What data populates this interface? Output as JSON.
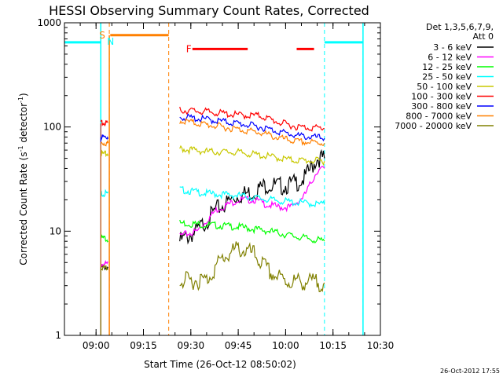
{
  "chart_data": {
    "type": "line",
    "title": "HESSI Observing Summary Count Rates, Corrected",
    "xlabel": "Start Time (26-Oct-12 08:50:02)",
    "ylabel_main": "Corrected Count Rate (s",
    "ylabel_sup1": "-1",
    "ylabel_mid": " detector",
    "ylabel_sup2": "-1",
    "ylabel_end": ")",
    "x_unit": "minutes since 08:50",
    "xlim": [
      0,
      100
    ],
    "ylim": [
      1,
      1000
    ],
    "y_scale": "log",
    "x_ticks": [
      {
        "value": 10,
        "label": "09:00"
      },
      {
        "value": 25,
        "label": "09:15"
      },
      {
        "value": 40,
        "label": "09:30"
      },
      {
        "value": 55,
        "label": "09:45"
      },
      {
        "value": 70,
        "label": "10:00"
      },
      {
        "value": 85,
        "label": "10:15"
      },
      {
        "value": 100,
        "label": "10:30"
      }
    ],
    "y_ticks": [
      {
        "value": 1,
        "label": "1"
      },
      {
        "value": 10,
        "label": "10"
      },
      {
        "value": 100,
        "label": "100"
      },
      {
        "value": 1000,
        "label": "1000"
      }
    ],
    "legend_header": [
      "Det 1,3,5,6,7,9,",
      "Att 0"
    ],
    "legend_position": "right",
    "segments": [
      [
        11.5,
        13.8
      ],
      [
        36.5,
        82.3
      ]
    ],
    "series": [
      {
        "name": "3 - 6 keV",
        "color": "#000000",
        "seg1": [
          4.5,
          4.5
        ],
        "seg2": [
          [
            36.5,
            8
          ],
          [
            42,
            10
          ],
          [
            48,
            16
          ],
          [
            55,
            22
          ],
          [
            60,
            24
          ],
          [
            64,
            28
          ],
          [
            68,
            27
          ],
          [
            72,
            28
          ],
          [
            76,
            32
          ],
          [
            80,
            50
          ],
          [
            82.3,
            50
          ]
        ]
      },
      {
        "name": "6 - 12 keV",
        "color": "#ff00ff",
        "seg1": [
          4.8,
          4.8
        ],
        "seg2": [
          [
            36.5,
            9
          ],
          [
            42,
            10
          ],
          [
            48,
            16
          ],
          [
            55,
            20
          ],
          [
            60,
            20
          ],
          [
            64,
            18
          ],
          [
            68,
            17
          ],
          [
            72,
            17
          ],
          [
            76,
            22
          ],
          [
            80,
            38
          ],
          [
            82.3,
            40
          ]
        ]
      },
      {
        "name": "12 - 25 keV",
        "color": "#00ff00",
        "seg1": [
          8.5,
          8.5
        ],
        "seg2": [
          [
            36.5,
            12
          ],
          [
            45,
            11.5
          ],
          [
            55,
            11
          ],
          [
            65,
            10
          ],
          [
            72,
            9
          ],
          [
            82.3,
            8
          ]
        ]
      },
      {
        "name": "25 - 50 keV",
        "color": "#00ffff",
        "seg1": [
          23,
          23
        ],
        "seg2": [
          [
            36.5,
            25
          ],
          [
            45,
            23
          ],
          [
            55,
            22
          ],
          [
            65,
            20
          ],
          [
            72,
            19
          ],
          [
            82.3,
            18
          ]
        ]
      },
      {
        "name": "50 - 100 keV",
        "color": "#c8c800",
        "seg1": [
          55,
          55
        ],
        "seg2": [
          [
            36.5,
            62
          ],
          [
            45,
            58
          ],
          [
            55,
            57
          ],
          [
            65,
            52
          ],
          [
            72,
            48
          ],
          [
            82.3,
            47
          ]
        ]
      },
      {
        "name": "100 - 300 keV",
        "color": "#ff0000",
        "seg1": [
          108,
          110
        ],
        "seg2": [
          [
            36.5,
            145
          ],
          [
            45,
            140
          ],
          [
            55,
            130
          ],
          [
            62,
            128
          ],
          [
            68,
            110
          ],
          [
            74,
            100
          ],
          [
            82.3,
            97
          ]
        ]
      },
      {
        "name": "300 - 800 keV",
        "color": "#0000ff",
        "seg1": [
          80,
          80
        ],
        "seg2": [
          [
            36.5,
            125
          ],
          [
            45,
            118
          ],
          [
            55,
            108
          ],
          [
            62,
            100
          ],
          [
            68,
            90
          ],
          [
            74,
            82
          ],
          [
            82.3,
            78
          ]
        ]
      },
      {
        "name": "800 - 7000 keV",
        "color": "#ff8000",
        "seg1": [
          70,
          70
        ],
        "seg2": [
          [
            36.5,
            115
          ],
          [
            45,
            105
          ],
          [
            55,
            95
          ],
          [
            62,
            88
          ],
          [
            68,
            78
          ],
          [
            74,
            72
          ],
          [
            82.3,
            70
          ]
        ]
      },
      {
        "name": "7000 - 20000 keV",
        "color": "#808000",
        "seg1": [
          4.5,
          4.5
        ],
        "seg2": [
          [
            36.5,
            3.3
          ],
          [
            45,
            3.4
          ],
          [
            50,
            5.5
          ],
          [
            55,
            6.8
          ],
          [
            60,
            6
          ],
          [
            65,
            4
          ],
          [
            70,
            3.3
          ],
          [
            82.3,
            3.2
          ]
        ]
      }
    ],
    "night_bars": [
      {
        "color": "#00ffff",
        "x0": 0,
        "x1": 11.5,
        "y": 650,
        "start_line": 11.5
      },
      {
        "color": "#00ffff",
        "x0": 82.3,
        "x1": 94.5,
        "y": 650,
        "start_line": 94.5
      }
    ],
    "saa": {
      "label": "S",
      "label2": "N",
      "x0": 14.5,
      "x1": 33,
      "y": 760,
      "color": "#ff8000"
    },
    "flare": {
      "label": "F",
      "color": "#ff0000",
      "y": 560,
      "segments": [
        [
          40.5,
          58
        ],
        [
          73.5,
          79
        ]
      ],
      "label_x": 38.5
    },
    "event_lines": [
      {
        "x": 11.5,
        "color": "#00ffff"
      },
      {
        "x": 14.2,
        "color": "#ff8000"
      },
      {
        "x": 33,
        "color": "#ff8000"
      },
      {
        "x": 82.3,
        "color": "#00ffff"
      },
      {
        "x": 94.5,
        "color": "#00ffff"
      }
    ],
    "footer_date": "26-Oct-2012 17:55"
  }
}
